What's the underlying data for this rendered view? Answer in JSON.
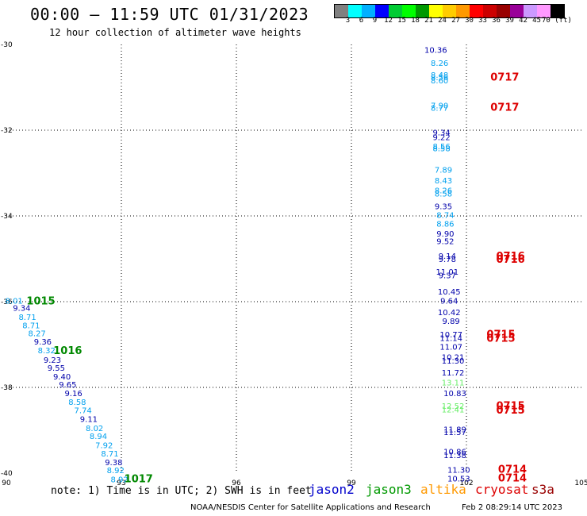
{
  "header": {
    "title": "00:00 – 11:59 UTC 01/31/2023",
    "subtitle": "12 hour collection of altimeter wave heights"
  },
  "colorbar": {
    "colors": [
      "#808080",
      "#00ffff",
      "#00b0ff",
      "#0000ff",
      "#00cc33",
      "#00ff00",
      "#009900",
      "#ffff00",
      "#ffcc00",
      "#ff9900",
      "#ff0000",
      "#cc0000",
      "#990000",
      "#990099",
      "#cc99ff",
      "#ff99ff",
      "#000000"
    ],
    "labels": [
      "3",
      "6",
      "9",
      "12",
      "15",
      "18",
      "21",
      "24",
      "27",
      "30",
      "33",
      "36",
      "39",
      "42",
      "45",
      "70 (ft)"
    ]
  },
  "footer": {
    "note": "note:  1) Time is in UTC;  2) SWH is in feet",
    "satellites": [
      {
        "name": "jason2",
        "color": "#0000cc"
      },
      {
        "name": "jason3",
        "color": "#009900"
      },
      {
        "name": "altika",
        "color": "#ff9900"
      },
      {
        "name": "cryosat",
        "color": "#dd0000"
      },
      {
        "name": "s3a",
        "color": "#990000"
      }
    ],
    "credit": "NOAA/NESDIS Center for Satellite Applications and Research",
    "timestamp": "Feb  2 08:29:14 UTC 2023"
  },
  "chart_data": {
    "type": "scatter",
    "xlim": [
      90,
      105
    ],
    "ylim": [
      -40,
      -30
    ],
    "xticks": [
      90,
      93,
      96,
      99,
      102,
      105
    ],
    "yticks": [
      -30,
      -32,
      -34,
      -36,
      -38,
      -40
    ],
    "grid": true,
    "colors": {
      "dark": "#0000aa",
      "light": "#00a0ee",
      "green": "#66ee66",
      "time_red": "#dd0000",
      "time_green": "#008800"
    },
    "track_east": [
      {
        "x": 101.2,
        "y": -30.12,
        "v": "10.36",
        "c": "dark"
      },
      {
        "x": 101.3,
        "y": -30.43,
        "v": "8.26",
        "c": "light"
      },
      {
        "x": 101.3,
        "y": -30.7,
        "v": "8.48",
        "c": "light"
      },
      {
        "x": 101.3,
        "y": -30.76,
        "v": "8.56",
        "c": "light"
      },
      {
        "x": 101.3,
        "y": -30.83,
        "v": "8.60",
        "c": "light"
      },
      {
        "x": 101.3,
        "y": -31.42,
        "v": "7.90",
        "c": "light"
      },
      {
        "x": 101.3,
        "y": -31.47,
        "v": "8.77",
        "c": "light"
      },
      {
        "x": 101.35,
        "y": -32.05,
        "v": "9.34",
        "c": "dark"
      },
      {
        "x": 101.35,
        "y": -32.16,
        "v": "9.22",
        "c": "dark"
      },
      {
        "x": 101.35,
        "y": -32.37,
        "v": "8.56",
        "c": "light"
      },
      {
        "x": 101.35,
        "y": -32.42,
        "v": "8.58",
        "c": "light"
      },
      {
        "x": 101.4,
        "y": -32.92,
        "v": "7.89",
        "c": "light"
      },
      {
        "x": 101.4,
        "y": -33.17,
        "v": "8.43",
        "c": "light"
      },
      {
        "x": 101.4,
        "y": -33.4,
        "v": "8.26",
        "c": "light"
      },
      {
        "x": 101.4,
        "y": -33.47,
        "v": "8.58",
        "c": "light"
      },
      {
        "x": 101.4,
        "y": -33.77,
        "v": "9.35",
        "c": "dark"
      },
      {
        "x": 101.45,
        "y": -33.97,
        "v": "8.74",
        "c": "light"
      },
      {
        "x": 101.45,
        "y": -34.18,
        "v": "8.86",
        "c": "light"
      },
      {
        "x": 101.45,
        "y": -34.41,
        "v": "9.90",
        "c": "dark"
      },
      {
        "x": 101.45,
        "y": -34.58,
        "v": "9.52",
        "c": "dark"
      },
      {
        "x": 101.5,
        "y": -34.93,
        "v": "9.14",
        "c": "dark"
      },
      {
        "x": 101.5,
        "y": -35.0,
        "v": "9.78",
        "c": "dark"
      },
      {
        "x": 101.5,
        "y": -35.3,
        "v": "11.01",
        "c": "dark"
      },
      {
        "x": 101.5,
        "y": -35.38,
        "v": "9.37",
        "c": "dark"
      },
      {
        "x": 101.55,
        "y": -35.76,
        "v": "10.45",
        "c": "dark"
      },
      {
        "x": 101.55,
        "y": -35.97,
        "v": "9.64",
        "c": "dark"
      },
      {
        "x": 101.55,
        "y": -36.24,
        "v": "10.42",
        "c": "dark"
      },
      {
        "x": 101.6,
        "y": -36.44,
        "v": "9.89",
        "c": "dark"
      },
      {
        "x": 101.6,
        "y": -36.76,
        "v": "10.77",
        "c": "dark"
      },
      {
        "x": 101.6,
        "y": -36.84,
        "v": "11.14",
        "c": "dark"
      },
      {
        "x": 101.6,
        "y": -37.05,
        "v": "11.07",
        "c": "dark"
      },
      {
        "x": 101.65,
        "y": -37.29,
        "v": "10.21",
        "c": "dark"
      },
      {
        "x": 101.65,
        "y": -37.37,
        "v": "11.30",
        "c": "dark"
      },
      {
        "x": 101.65,
        "y": -37.65,
        "v": "11.72",
        "c": "dark"
      },
      {
        "x": 101.65,
        "y": -37.88,
        "v": "13.11",
        "c": "green"
      },
      {
        "x": 101.7,
        "y": -38.13,
        "v": "10.83",
        "c": "dark"
      },
      {
        "x": 101.65,
        "y": -38.43,
        "v": "12.52",
        "c": "green"
      },
      {
        "x": 101.65,
        "y": -38.51,
        "v": "12.41",
        "c": "green"
      },
      {
        "x": 101.7,
        "y": -38.97,
        "v": "11.89",
        "c": "dark"
      },
      {
        "x": 101.7,
        "y": -39.04,
        "v": "11.57",
        "c": "dark"
      },
      {
        "x": 101.7,
        "y": -39.49,
        "v": "10.86",
        "c": "dark"
      },
      {
        "x": 101.7,
        "y": -39.57,
        "v": "11.38",
        "c": "dark"
      },
      {
        "x": 101.8,
        "y": -39.92,
        "v": "11.30",
        "c": "dark"
      },
      {
        "x": 101.8,
        "y": -40.12,
        "v": "10.53",
        "c": "dark"
      }
    ],
    "track_west": [
      {
        "x": 90.2,
        "y": -35.97,
        "v": "8.01",
        "c": "light"
      },
      {
        "x": 90.4,
        "y": -36.14,
        "v": "9.34",
        "c": "dark"
      },
      {
        "x": 90.55,
        "y": -36.35,
        "v": "8.71",
        "c": "light"
      },
      {
        "x": 90.65,
        "y": -36.55,
        "v": "8.71",
        "c": "light"
      },
      {
        "x": 90.8,
        "y": -36.73,
        "v": "8.27",
        "c": "light"
      },
      {
        "x": 90.95,
        "y": -36.93,
        "v": "9.36",
        "c": "dark"
      },
      {
        "x": 91.05,
        "y": -37.13,
        "v": "8.32",
        "c": "light"
      },
      {
        "x": 91.2,
        "y": -37.35,
        "v": "9.23",
        "c": "dark"
      },
      {
        "x": 91.3,
        "y": -37.54,
        "v": "9.55",
        "c": "dark"
      },
      {
        "x": 91.45,
        "y": -37.74,
        "v": "9.40",
        "c": "dark"
      },
      {
        "x": 91.6,
        "y": -37.93,
        "v": "9.65",
        "c": "dark"
      },
      {
        "x": 91.75,
        "y": -38.13,
        "v": "9.16",
        "c": "dark"
      },
      {
        "x": 91.85,
        "y": -38.33,
        "v": "8.58",
        "c": "light"
      },
      {
        "x": 92.0,
        "y": -38.53,
        "v": "7.74",
        "c": "light"
      },
      {
        "x": 92.15,
        "y": -38.73,
        "v": "9.11",
        "c": "dark"
      },
      {
        "x": 92.3,
        "y": -38.94,
        "v": "8.02",
        "c": "light"
      },
      {
        "x": 92.4,
        "y": -39.13,
        "v": "8.94",
        "c": "light"
      },
      {
        "x": 92.55,
        "y": -39.34,
        "v": "7.92",
        "c": "light"
      },
      {
        "x": 92.7,
        "y": -39.54,
        "v": "8.71",
        "c": "light"
      },
      {
        "x": 92.8,
        "y": -39.74,
        "v": "9.38",
        "c": "dark"
      },
      {
        "x": 92.85,
        "y": -39.93,
        "v": "8.92",
        "c": "light"
      },
      {
        "x": 92.95,
        "y": -40.14,
        "v": "8.92",
        "c": "light"
      }
    ],
    "time_labels": [
      {
        "x": 103.0,
        "y": -30.75,
        "t": "0717",
        "c": "time_red"
      },
      {
        "x": 103.0,
        "y": -31.45,
        "t": "0717",
        "c": "time_red"
      },
      {
        "x": 103.15,
        "y": -34.93,
        "t": "0716",
        "c": "time_red"
      },
      {
        "x": 103.15,
        "y": -35.0,
        "t": "0716",
        "c": "time_red"
      },
      {
        "x": 102.9,
        "y": -36.75,
        "t": "0715",
        "c": "time_red"
      },
      {
        "x": 102.9,
        "y": -36.84,
        "t": "0715",
        "c": "time_red"
      },
      {
        "x": 103.15,
        "y": -38.42,
        "t": "0715",
        "c": "time_red"
      },
      {
        "x": 103.15,
        "y": -38.52,
        "t": "0715",
        "c": "time_red"
      },
      {
        "x": 103.2,
        "y": -39.9,
        "t": "0714",
        "c": "time_red"
      },
      {
        "x": 103.2,
        "y": -40.1,
        "t": "0714",
        "c": "time_red"
      },
      {
        "x": 90.9,
        "y": -35.97,
        "t": "1015",
        "c": "time_green"
      },
      {
        "x": 91.6,
        "y": -37.13,
        "t": "1016",
        "c": "time_green"
      },
      {
        "x": 93.45,
        "y": -40.12,
        "t": "1017",
        "c": "time_green"
      }
    ]
  }
}
